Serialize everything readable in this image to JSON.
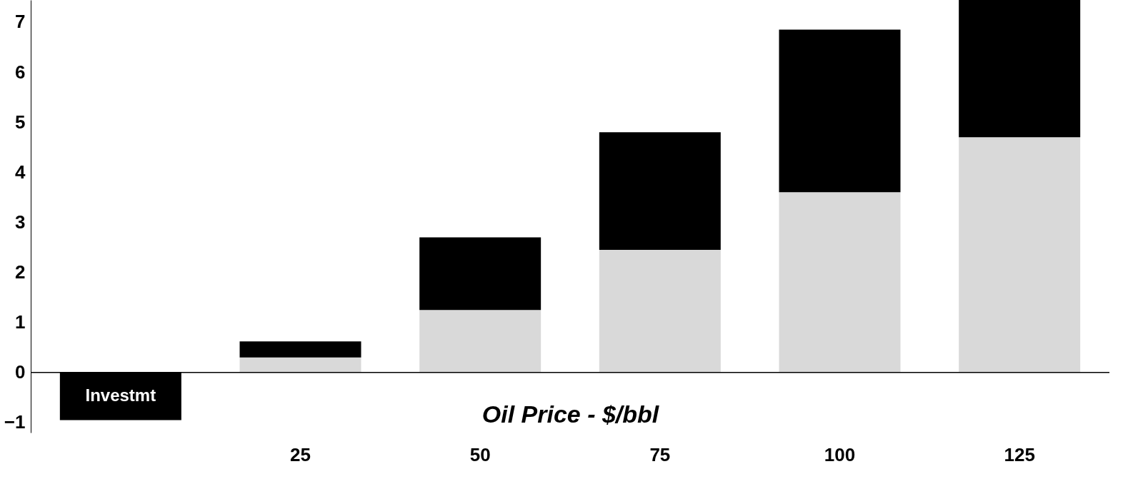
{
  "chart_data": {
    "type": "bar",
    "stacked": true,
    "xlabel": "Oil Price - $/bbl",
    "categories": [
      null,
      "25",
      "50",
      "75",
      "100",
      "125"
    ],
    "series": [
      {
        "color": "#d9d9d9",
        "values": [
          null,
          0.3,
          1.25,
          2.45,
          3.6,
          4.7
        ]
      },
      {
        "color": "#000000",
        "values": [
          -0.95,
          0.32,
          1.45,
          2.35,
          3.25,
          2.74
        ]
      }
    ],
    "ylim": [
      -1.2,
      7.44
    ],
    "yticks": [
      -1,
      0,
      1,
      2,
      3,
      4,
      5,
      6,
      7
    ],
    "annotations": [
      "Investmt"
    ]
  }
}
